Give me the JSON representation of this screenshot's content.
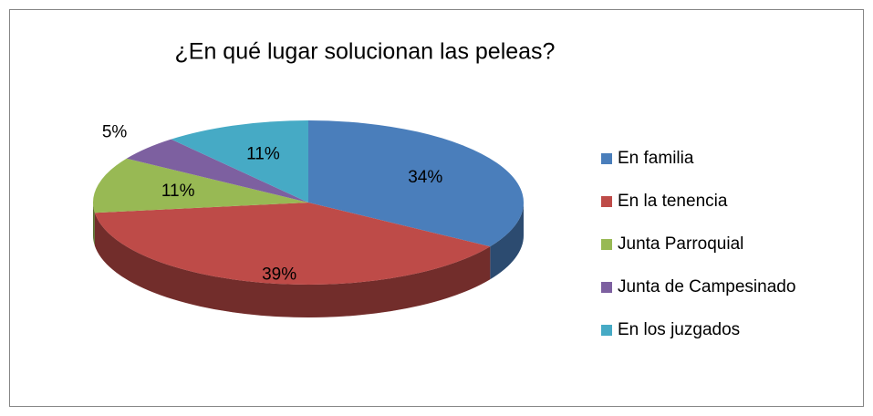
{
  "chart_data": {
    "type": "pie",
    "title": "¿En qué lugar solucionan las peleas?",
    "categories": [
      "En familia",
      "En la tenencia",
      "Junta Parroquial",
      "Junta de Campesinado",
      "En los juzgados"
    ],
    "values": [
      34,
      39,
      11,
      5,
      11
    ],
    "value_labels": [
      "34%",
      "39%",
      "11%",
      "5%",
      "11%"
    ],
    "colors": [
      "#4a7ebb",
      "#be4b48",
      "#98b954",
      "#7d60a0",
      "#46aac5"
    ],
    "legend": "right"
  }
}
